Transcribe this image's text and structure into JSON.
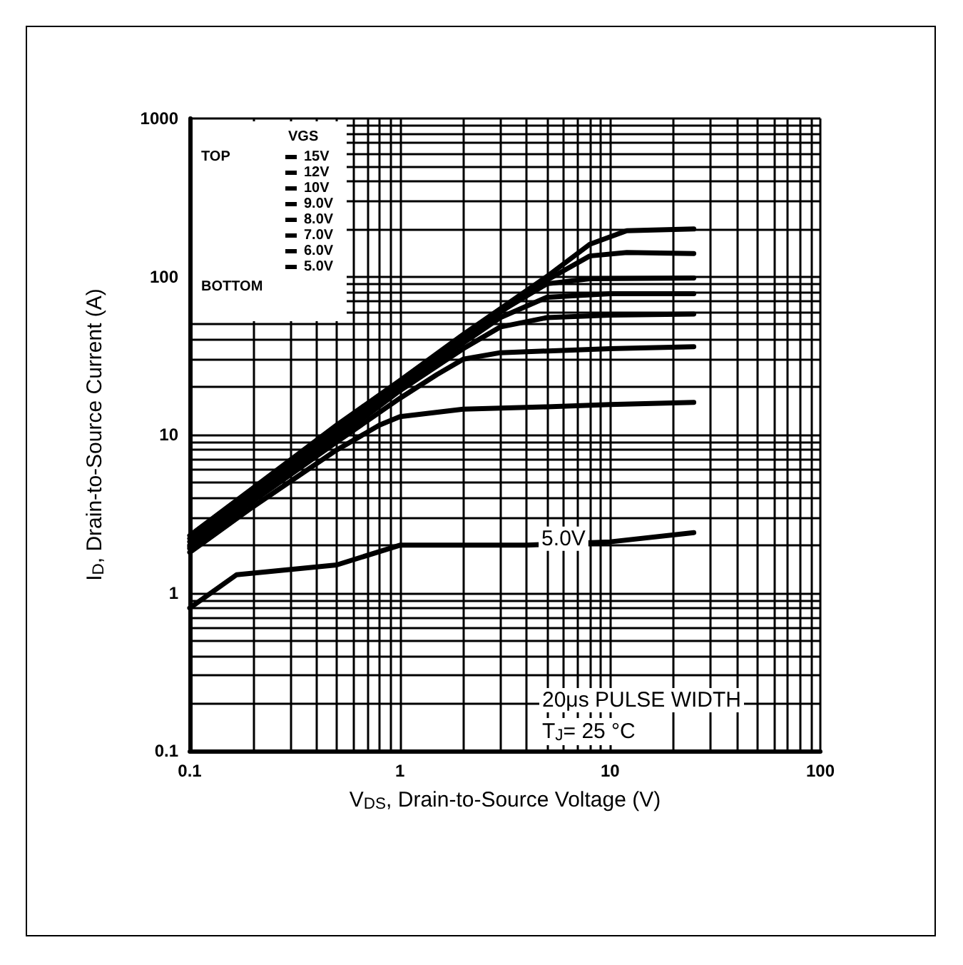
{
  "chart_data": {
    "type": "line",
    "xlabel": "V$_{DS}$, Drain-to-Source Voltage (V)",
    "ylabel": "I$_{D}$, Drain-to-Source Current (A)",
    "legend_title": "VGS",
    "log": "xy",
    "xlim": [
      0.1,
      100
    ],
    "ylim": [
      0.1,
      1000
    ],
    "xticks": [
      0.1,
      1,
      10,
      100
    ],
    "yticks": [
      0.1,
      1,
      10,
      100,
      1000
    ],
    "grid": true,
    "legend": "top left",
    "marker": "none",
    "line_style": "solid",
    "series": [
      {
        "name": "15V",
        "color": "#000000",
        "x": [
          0.1,
          0.2,
          0.5,
          1,
          2,
          5,
          8,
          12,
          25
        ],
        "values": [
          2.3,
          4.6,
          11.5,
          22,
          43,
          100,
          160,
          195,
          200
        ]
      },
      {
        "name": "12V",
        "color": "#000000",
        "x": [
          0.1,
          0.2,
          0.5,
          1,
          2,
          5,
          8,
          12,
          25
        ],
        "values": [
          2.2,
          4.4,
          11,
          21,
          41,
          95,
          135,
          142,
          140
        ]
      },
      {
        "name": "10V",
        "color": "#000000",
        "x": [
          0.1,
          0.2,
          0.5,
          1,
          2,
          3,
          5,
          8,
          25
        ],
        "values": [
          2.1,
          4.2,
          10.5,
          20.5,
          40,
          60,
          90,
          97,
          98
        ]
      },
      {
        "name": "9.0V",
        "color": "#000000",
        "x": [
          0.1,
          0.2,
          0.5,
          1,
          2,
          3,
          5,
          10,
          25
        ],
        "values": [
          2.0,
          4.1,
          10,
          20,
          38,
          55,
          74,
          78,
          78
        ]
      },
      {
        "name": "8.0V",
        "color": "#000000",
        "x": [
          0.1,
          0.2,
          0.5,
          1,
          2,
          3,
          5,
          10,
          25
        ],
        "values": [
          1.95,
          4,
          9.5,
          19,
          35,
          48,
          55,
          57,
          58
        ]
      },
      {
        "name": "7.0V",
        "color": "#000000",
        "x": [
          0.1,
          0.2,
          0.5,
          1,
          1.5,
          2,
          3,
          10,
          25
        ],
        "values": [
          1.9,
          3.8,
          9,
          17,
          24,
          30,
          33,
          35,
          36
        ]
      },
      {
        "name": "6.0V",
        "color": "#000000",
        "x": [
          0.1,
          0.2,
          0.5,
          0.8,
          1,
          2,
          5,
          10,
          25
        ],
        "values": [
          1.8,
          3.5,
          8,
          11.5,
          13,
          14.5,
          15,
          15.5,
          16
        ]
      },
      {
        "name": "5.0V",
        "color": "#000000",
        "x": [
          0.1,
          0.167,
          0.5,
          1,
          4,
          10,
          25
        ],
        "values": [
          0.8,
          1.3,
          1.5,
          2.0,
          2.0,
          2.1,
          2.4
        ]
      }
    ],
    "annotations": [
      "TOP",
      "BOTTOM",
      {
        "text": "5.0V",
        "x": 6,
        "y": 2.2
      },
      "20μs PULSE WIDTH",
      "T$_{J}$= 25 °C"
    ]
  }
}
